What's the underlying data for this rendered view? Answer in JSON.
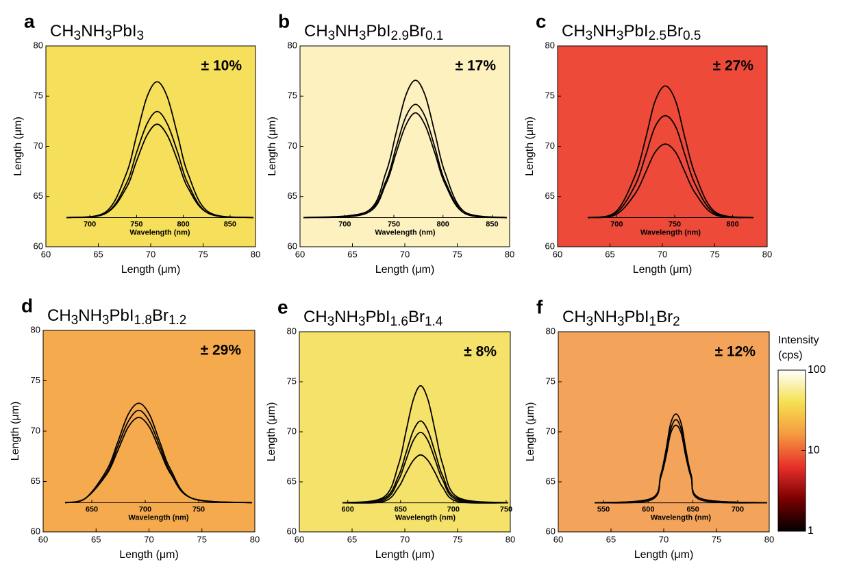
{
  "chart_data": [
    {
      "type": "map",
      "panel": "a",
      "title": [
        "CH",
        "3",
        "NH",
        "3",
        "PbI",
        "3"
      ],
      "annotation": "± 10%",
      "color": "#f6df5a",
      "xlabel": "Length (μm)",
      "ylabel": "Length (μm)",
      "xlim": [
        60,
        80
      ],
      "ylim": [
        60,
        80
      ],
      "xticks": [
        60,
        65,
        70,
        75,
        80
      ],
      "yticks": [
        60,
        65,
        70,
        75,
        80
      ],
      "inset": {
        "type": "line",
        "xlabel": "Wavelength (nm)",
        "xlim": [
          675,
          875
        ],
        "xticks": [
          700,
          750,
          800,
          850
        ],
        "ylim": [
          0,
          1
        ],
        "color": "#000000",
        "x": [
          675,
          717,
          739,
          750,
          761,
          772,
          783,
          794,
          805,
          827,
          875
        ],
        "series": [
          {
            "values": [
              0,
              0.04,
              0.31,
              0.58,
              0.85,
              0.96,
              0.85,
              0.58,
              0.31,
              0.04,
              0
            ]
          },
          {
            "values": [
              0,
              0.03,
              0.24,
              0.46,
              0.66,
              0.75,
              0.66,
              0.46,
              0.24,
              0.03,
              0
            ]
          },
          {
            "values": [
              0,
              0.03,
              0.21,
              0.4,
              0.58,
              0.66,
              0.58,
              0.4,
              0.21,
              0.03,
              0
            ]
          }
        ]
      }
    },
    {
      "type": "map",
      "panel": "b",
      "title": [
        "CH",
        "3",
        "NH",
        "3",
        "PbI",
        "2.9",
        "Br",
        "0.1"
      ],
      "annotation": "± 17%",
      "color": "#fcf1bf",
      "xlabel": "Length (μm)",
      "ylabel": "Length (μm)",
      "xlim": [
        60,
        80
      ],
      "ylim": [
        60,
        80
      ],
      "xticks": [
        60,
        65,
        70,
        75,
        80
      ],
      "yticks": [
        60,
        65,
        70,
        75,
        80
      ],
      "inset": {
        "type": "line",
        "xlabel": "Wavelength (nm)",
        "xlim": [
          658,
          865
        ],
        "xticks": [
          700,
          750,
          800,
          850
        ],
        "ylim": [
          0,
          1
        ],
        "color": "#000000",
        "x": [
          658,
          722,
          742,
          752,
          762,
          772,
          782,
          792,
          802,
          822,
          865
        ],
        "series": [
          {
            "values": [
              0,
              0.04,
              0.32,
              0.59,
              0.86,
              0.97,
              0.86,
              0.59,
              0.32,
              0.04,
              0
            ]
          },
          {
            "values": [
              0,
              0.04,
              0.26,
              0.49,
              0.71,
              0.8,
              0.71,
              0.49,
              0.26,
              0.04,
              0
            ]
          },
          {
            "values": [
              0,
              0.03,
              0.24,
              0.45,
              0.65,
              0.74,
              0.65,
              0.45,
              0.24,
              0.03,
              0
            ]
          }
        ]
      }
    },
    {
      "type": "map",
      "panel": "c",
      "title": [
        "CH",
        "3",
        "NH",
        "3",
        "PbI",
        "2.5",
        "Br",
        "0.5"
      ],
      "annotation": "± 27%",
      "color": "#ee4a3a",
      "xlabel": "Length (μm)",
      "ylabel": "Length (μm)",
      "xlim": [
        60,
        80
      ],
      "ylim": [
        60,
        80
      ],
      "xticks": [
        60,
        65,
        70,
        75,
        80
      ],
      "yticks": [
        60,
        65,
        70,
        75,
        80
      ],
      "inset": {
        "type": "line",
        "xlabel": "Wavelength (nm)",
        "xlim": [
          675,
          818
        ],
        "xticks": [
          700,
          750,
          800
        ],
        "ylim": [
          0,
          1
        ],
        "color": "#000000",
        "x": [
          675,
          699,
          716,
          725,
          733,
          742,
          751,
          759,
          768,
          785,
          818
        ],
        "series": [
          {
            "values": [
              0,
              0.04,
              0.3,
              0.56,
              0.82,
              0.93,
              0.82,
              0.56,
              0.3,
              0.04,
              0
            ]
          },
          {
            "values": [
              0,
              0.03,
              0.23,
              0.44,
              0.64,
              0.72,
              0.64,
              0.44,
              0.23,
              0.03,
              0
            ]
          },
          {
            "values": [
              0,
              0.02,
              0.17,
              0.32,
              0.46,
              0.52,
              0.46,
              0.32,
              0.17,
              0.02,
              0
            ]
          }
        ]
      }
    },
    {
      "type": "map",
      "panel": "d",
      "title": [
        "CH",
        "3",
        "NH",
        "3",
        "PbI",
        "1.8",
        "Br",
        "1.2"
      ],
      "annotation": "± 29%",
      "color": "#f5aa4e",
      "xlabel": "Length (μm)",
      "ylabel": "Length (μm)",
      "xlim": [
        60,
        80
      ],
      "ylim": [
        60,
        80
      ],
      "xticks": [
        60,
        65,
        70,
        75,
        80
      ],
      "yticks": [
        60,
        65,
        70,
        75,
        80
      ],
      "inset": {
        "type": "line",
        "xlabel": "Wavelength (nm)",
        "xlim": [
          625,
          800
        ],
        "xticks": [
          650,
          700,
          750
        ],
        "ylim": [
          0,
          1
        ],
        "color": "#000000",
        "x": [
          625,
          644,
          664,
          674,
          684,
          694,
          704,
          714,
          724,
          744,
          800
        ],
        "series": [
          {
            "values": [
              0,
              0.03,
              0.23,
              0.42,
              0.62,
              0.7,
              0.62,
              0.42,
              0.23,
              0.03,
              0
            ]
          },
          {
            "values": [
              0,
              0.03,
              0.21,
              0.39,
              0.57,
              0.65,
              0.57,
              0.39,
              0.21,
              0.03,
              0
            ]
          },
          {
            "values": [
              0,
              0.03,
              0.2,
              0.36,
              0.53,
              0.6,
              0.53,
              0.36,
              0.2,
              0.03,
              0
            ]
          }
        ]
      }
    },
    {
      "type": "map",
      "panel": "e",
      "title": [
        "CH",
        "3",
        "NH",
        "3",
        "PbI",
        "1.6",
        "Br",
        "1.4"
      ],
      "annotation": "± 8%",
      "color": "#f5e26a",
      "xlabel": "Length (μm)",
      "ylabel": "Length (μm)",
      "xlim": [
        60,
        80
      ],
      "ylim": [
        60,
        80
      ],
      "xticks": [
        60,
        65,
        70,
        75,
        80
      ],
      "yticks": [
        60,
        65,
        70,
        75,
        80
      ],
      "inset": {
        "type": "line",
        "xlabel": "Wavelength (nm)",
        "xlim": [
          595,
          752
        ],
        "xticks": [
          600,
          650,
          700,
          750
        ],
        "ylim": [
          0,
          1
        ],
        "color": "#000000",
        "x": [
          595,
          634,
          648,
          655,
          662,
          669,
          676,
          683,
          690,
          704,
          752
        ],
        "series": [
          {
            "values": [
              0,
              0.04,
              0.27,
              0.5,
              0.73,
              0.83,
              0.73,
              0.5,
              0.27,
              0.04,
              0
            ]
          },
          {
            "values": [
              0,
              0.03,
              0.19,
              0.35,
              0.51,
              0.58,
              0.51,
              0.35,
              0.19,
              0.03,
              0
            ]
          },
          {
            "values": [
              0,
              0.02,
              0.16,
              0.3,
              0.44,
              0.5,
              0.44,
              0.3,
              0.16,
              0.02,
              0
            ]
          },
          {
            "values": [
              0,
              0.01,
              0.11,
              0.21,
              0.3,
              0.34,
              0.3,
              0.21,
              0.11,
              0.01,
              0
            ]
          }
        ]
      }
    },
    {
      "type": "map",
      "panel": "f",
      "title": [
        "CH",
        "3",
        "NH",
        "3",
        "PbI",
        "1",
        "Br",
        "2"
      ],
      "annotation": "± 12%",
      "color": "#f3a35a",
      "xlabel": "Length (μm)",
      "ylabel": "Length (μm)",
      "xlim": [
        60,
        80
      ],
      "ylim": [
        60,
        80
      ],
      "xticks": [
        60,
        65,
        70,
        75,
        80
      ],
      "yticks": [
        60,
        65,
        70,
        75,
        80
      ],
      "inset": {
        "type": "line",
        "xlabel": "Wavelength (nm)",
        "xlim": [
          540,
          733
        ],
        "xticks": [
          550,
          600,
          650,
          700
        ],
        "ylim": [
          0,
          1
        ],
        "color": "#000000",
        "x": [
          540,
          603,
          614,
          620,
          625,
          631,
          637,
          642,
          648,
          659,
          733
        ],
        "series": [
          {
            "values": [
              0,
              0.03,
              0.2,
              0.38,
              0.56,
              0.63,
              0.56,
              0.38,
              0.2,
              0.03,
              0
            ]
          },
          {
            "values": [
              0,
              0.03,
              0.19,
              0.36,
              0.52,
              0.59,
              0.52,
              0.36,
              0.19,
              0.03,
              0
            ]
          },
          {
            "values": [
              0,
              0.02,
              0.18,
              0.33,
              0.49,
              0.55,
              0.49,
              0.33,
              0.18,
              0.02,
              0
            ]
          }
        ]
      }
    },
    {
      "type": "colorbar",
      "title": [
        "Intensity",
        "(cps)"
      ],
      "log": true,
      "ylim": [
        1,
        100
      ],
      "yticks": [
        1,
        10,
        100
      ],
      "colors": [
        "#000000",
        "#7a0000",
        "#e8302a",
        "#f59a40",
        "#f5e050",
        "#ffffff"
      ]
    }
  ]
}
